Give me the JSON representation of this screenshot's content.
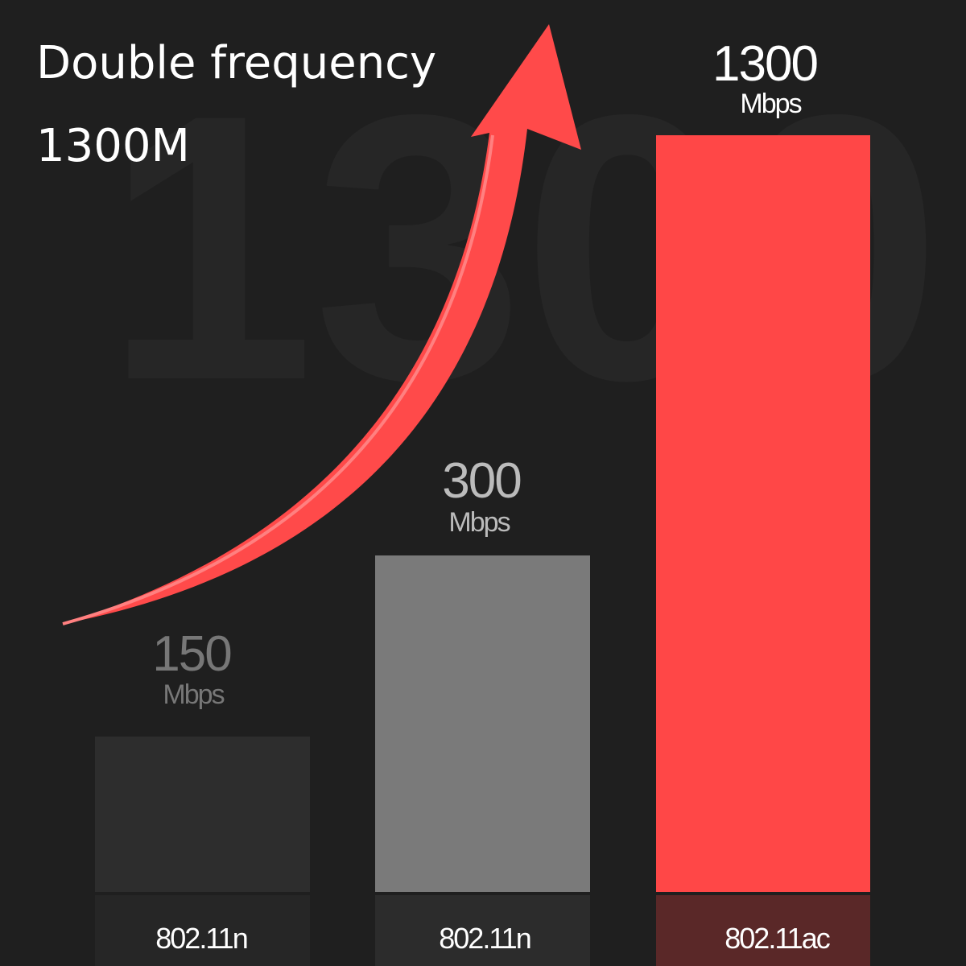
{
  "header": {
    "title": "Double frequency",
    "subtitle": "1300M"
  },
  "bars": [
    {
      "value": "150",
      "unit": "Mbps",
      "label": "802.11n"
    },
    {
      "value": "300",
      "unit": "Mbps",
      "label": "802.11n"
    },
    {
      "value": "1300",
      "unit": "Mbps",
      "label": "802.11ac"
    }
  ]
}
